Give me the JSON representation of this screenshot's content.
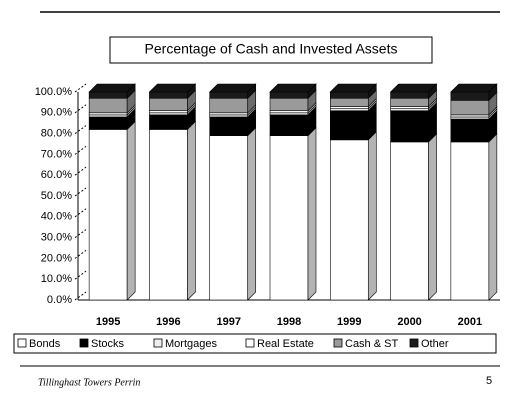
{
  "chart_data": {
    "type": "bar",
    "stacked": true,
    "title": "Percentage of Cash and Invested Assets",
    "categories": [
      "1995",
      "1996",
      "1997",
      "1998",
      "1999",
      "2000",
      "2001"
    ],
    "series": [
      {
        "name": "Bonds",
        "color": "#ffffff",
        "values": [
          82,
          82,
          79,
          79,
          77,
          76,
          76
        ]
      },
      {
        "name": "Stocks",
        "color": "#000000",
        "values": [
          6,
          7,
          9,
          10,
          14,
          15,
          11
        ]
      },
      {
        "name": "Mortgages",
        "color": "#eeeeee",
        "values": [
          1,
          1,
          1,
          1,
          1,
          1,
          1
        ]
      },
      {
        "name": "Real Estate",
        "color": "#ffffff",
        "values": [
          1,
          1,
          1,
          1,
          1,
          1,
          1
        ]
      },
      {
        "name": "Cash & ST",
        "color": "#9a9a9a",
        "values": [
          7,
          6,
          7,
          6,
          4,
          4,
          7
        ]
      },
      {
        "name": "Other",
        "color": "#1a1a1a",
        "values": [
          3,
          3,
          3,
          3,
          3,
          3,
          4
        ]
      }
    ],
    "ylim": [
      0,
      100
    ],
    "yticks": [
      {
        "value": 0,
        "label": "0.0%"
      },
      {
        "value": 10,
        "label": "10.0%"
      },
      {
        "value": 20,
        "label": "20.0%"
      },
      {
        "value": 30,
        "label": "30.0%"
      },
      {
        "value": 40,
        "label": "40.0%"
      },
      {
        "value": 50,
        "label": "50.0%"
      },
      {
        "value": 60,
        "label": "60.0%"
      },
      {
        "value": 70,
        "label": "70.0%"
      },
      {
        "value": 80,
        "label": "80.0%"
      },
      {
        "value": 90,
        "label": "90.0%"
      },
      {
        "value": 100,
        "label": "100.0%"
      }
    ],
    "legend": "bottom"
  },
  "footer": {
    "text": "Tillinghast Towers Perrin",
    "page": "5"
  }
}
